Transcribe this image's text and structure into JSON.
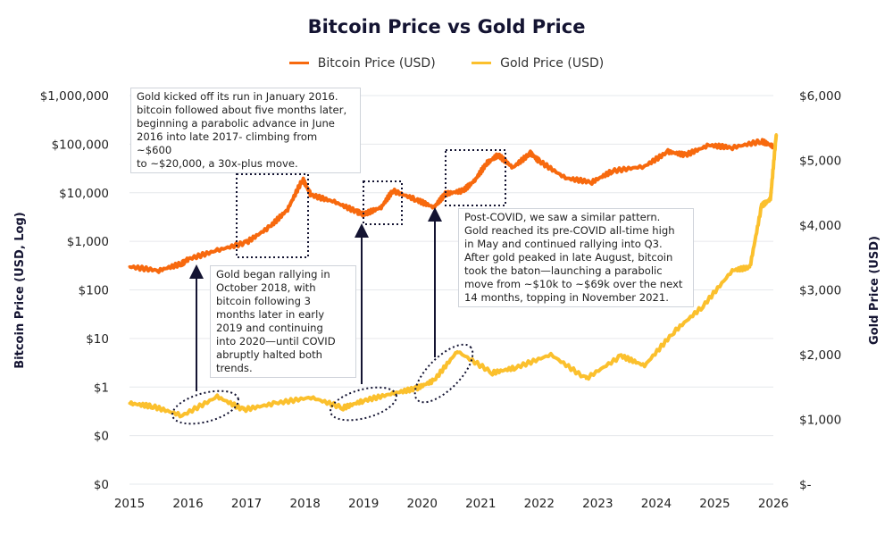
{
  "chart_data": {
    "type": "line",
    "title": "Bitcoin Price vs Gold Price",
    "legend_position": "top",
    "grid": true,
    "xlim": [
      2015,
      2026
    ],
    "x_ticks": [
      "2015",
      "2016",
      "2017",
      "2018",
      "2019",
      "2020",
      "2021",
      "2022",
      "2023",
      "2024",
      "2025",
      "2026"
    ],
    "left_axis": {
      "label": "Bitcoin Price (USD, Log)",
      "scale": "log",
      "ticks": [
        "$1,000,000",
        "$100,000",
        "$10,000",
        "$1,000",
        "$100",
        "$10",
        "$1",
        "$0",
        "$0"
      ]
    },
    "right_axis": {
      "label": "Gold Price (USD)",
      "scale": "linear",
      "ylim": [
        0,
        6000
      ],
      "ticks": [
        "$6,000",
        "$5,000",
        "$4,000",
        "$3,000",
        "$2,000",
        "$1,000",
        "$-"
      ]
    },
    "series": [
      {
        "name": "Bitcoin Price (USD)",
        "axis": "left",
        "color": "#f7690e",
        "x": [
          2015.0,
          2015.5,
          2015.9,
          2016.0,
          2016.5,
          2017.0,
          2017.4,
          2017.7,
          2017.96,
          2018.1,
          2018.5,
          2018.9,
          2019.0,
          2019.3,
          2019.5,
          2019.9,
          2020.2,
          2020.4,
          2020.7,
          2020.9,
          2021.1,
          2021.3,
          2021.55,
          2021.85,
          2022.0,
          2022.45,
          2022.9,
          2023.25,
          2023.8,
          2024.2,
          2024.5,
          2024.9,
          2025.3,
          2025.8,
          2026.0
        ],
        "y": [
          300,
          250,
          350,
          430,
          650,
          950,
          2000,
          4500,
          19000,
          9000,
          6500,
          4000,
          3600,
          5000,
          11000,
          7200,
          5000,
          9500,
          11000,
          18000,
          40000,
          60000,
          33000,
          65000,
          45000,
          20000,
          16500,
          28000,
          35000,
          70000,
          60000,
          95000,
          85000,
          115000,
          90000
        ]
      },
      {
        "name": "Gold Price (USD)",
        "axis": "right",
        "color": "#fbc02d",
        "x": [
          2015.0,
          2015.4,
          2015.9,
          2016.5,
          2016.95,
          2017.5,
          2018.1,
          2018.65,
          2019.0,
          2019.5,
          2019.9,
          2020.2,
          2020.6,
          2021.2,
          2021.6,
          2022.2,
          2022.8,
          2023.4,
          2023.8,
          2024.3,
          2024.8,
          2025.3,
          2025.6,
          2025.8,
          2025.95,
          2026.05
        ],
        "y": [
          1250,
          1200,
          1060,
          1350,
          1150,
          1250,
          1340,
          1180,
          1290,
          1400,
          1480,
          1600,
          2050,
          1720,
          1800,
          2000,
          1630,
          1980,
          1830,
          2350,
          2750,
          3300,
          3350,
          4300,
          4400,
          5400
        ]
      }
    ],
    "annotations": [
      "Gold kicked off its run in January 2016.\nbitcoin followed about five months later,\nbeginning a parabolic advance in June\n2016 into late 2017- climbing from ~$600\nto ~$20,000, a 30x-plus move.",
      "Gold began rallying in\nOctober 2018, with\nbitcoin following  3\nmonths later in early\n2019 and continuing\ninto 2020—until COVID\nabruptly halted both\ntrends.",
      "Post-COVID, we saw a similar pattern.\nGold reached its pre-COVID all-time high\nin May and continued rallying into Q3.\nAfter gold peaked in late August, bitcoin\ntook the baton—launching a parabolic\nmove from ~$10k to ~$69k over the next\n14 months, topping in November 2021."
    ]
  }
}
